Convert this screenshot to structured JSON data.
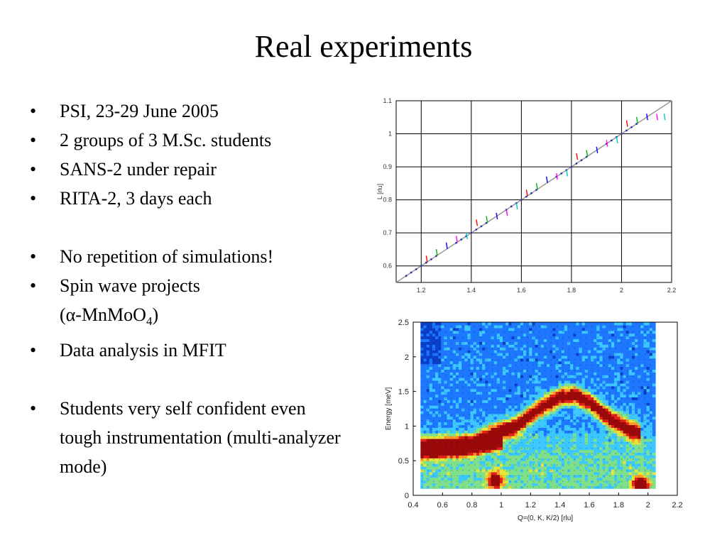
{
  "slide": {
    "title": "Real experiments"
  },
  "bullets": [
    {
      "text": "PSI, 23-29 June 2005"
    },
    {
      "text": "2 groups of 3 M.Sc. students"
    },
    {
      "text": "SANS-2 under repair"
    },
    {
      "text": "RITA-2, 3 days each"
    },
    {
      "text": "No repetition of simulations!"
    },
    {
      "text": "Spin  wave projects",
      "formula": {
        "prefix": "(α-MnMoO",
        "subscript": "4",
        "suffix": ")"
      }
    },
    {
      "text": "Data analysis in MFIT"
    },
    {
      "text": "Students very self confident even tough instrumentation (multi-analyzer mode)"
    }
  ],
  "chart_data": [
    {
      "type": "scatter",
      "xlabel": "",
      "ylabel": "L [rlu]",
      "xlim": [
        1.1,
        2.2
      ],
      "ylim": [
        0.55,
        1.1
      ],
      "xticks": [
        "1.2",
        "1.4",
        "1.6",
        "1.8",
        "2",
        "2.2"
      ],
      "yticks": [
        "0.6",
        "0.7",
        "0.8",
        "0.9",
        "1",
        "1.1"
      ],
      "grid": true,
      "reference_line": {
        "x": [
          1.1,
          2.2
        ],
        "y": [
          0.55,
          1.1
        ]
      },
      "scan_centers": [
        1.2,
        1.4,
        1.6,
        1.8,
        2.0
      ],
      "series": [
        {
          "color": "#ff0000",
          "x": [
            1.22,
            1.42,
            1.62,
            1.82,
            2.02
          ],
          "y": [
            0.62,
            0.73,
            0.82,
            0.93,
            1.03
          ]
        },
        {
          "color": "#00b000",
          "x": [
            1.26,
            1.46,
            1.66,
            1.86,
            2.06
          ],
          "y": [
            0.64,
            0.74,
            0.84,
            0.94,
            1.04
          ]
        },
        {
          "color": "#0000ff",
          "x": [
            1.3,
            1.5,
            1.7,
            1.9,
            2.1
          ],
          "y": [
            0.66,
            0.75,
            0.86,
            0.95,
            1.05
          ]
        },
        {
          "color": "#ff00ff",
          "x": [
            1.34,
            1.54,
            1.74,
            1.94,
            2.14
          ],
          "y": [
            0.68,
            0.76,
            0.87,
            0.97,
            1.05
          ]
        },
        {
          "color": "#00c8c8",
          "x": [
            1.38,
            1.58,
            1.78,
            1.98,
            2.17
          ],
          "y": [
            0.69,
            0.78,
            0.88,
            0.98,
            1.05
          ]
        }
      ]
    },
    {
      "type": "heatmap",
      "xlabel": "Q=(0, K, K/2) [rlu]",
      "ylabel": "Energy [meV]",
      "xlim": [
        0.4,
        2.2
      ],
      "ylim": [
        0,
        2.5
      ],
      "xticks": [
        "0.4",
        "0.6",
        "0.8",
        "1",
        "1.2",
        "1.4",
        "1.6",
        "1.8",
        "2",
        "2.2"
      ],
      "yticks": [
        "0",
        "0.5",
        "1",
        "1.5",
        "2",
        "2.5"
      ],
      "data_x_range": [
        0.45,
        2.05
      ],
      "data_y_range": [
        0.1,
        2.5
      ],
      "colormap": [
        "#0a3fc8",
        "#1e78ff",
        "#3cc8ff",
        "#7ee08a",
        "#e6e63a",
        "#ff9a28",
        "#e0221a",
        "#9a0a0a"
      ],
      "dispersion": {
        "q": [
          0.45,
          0.6,
          0.8,
          0.95,
          1.1,
          1.25,
          1.4,
          1.5,
          1.6,
          1.75,
          1.9,
          1.95
        ],
        "energy": [
          0.68,
          0.7,
          0.74,
          0.9,
          1.0,
          1.25,
          1.42,
          1.45,
          1.35,
          1.1,
          0.93,
          0.9
        ]
      },
      "low_branch": {
        "q": [
          0.45,
          0.7,
          0.9,
          1.0
        ],
        "energy": [
          0.68,
          0.68,
          0.72,
          0.75
        ]
      },
      "hotspots": [
        {
          "q": 0.96,
          "energy": 0.22,
          "intensity": 0.85
        },
        {
          "q": 1.95,
          "energy": 0.15,
          "intensity": 1.0
        }
      ]
    }
  ]
}
